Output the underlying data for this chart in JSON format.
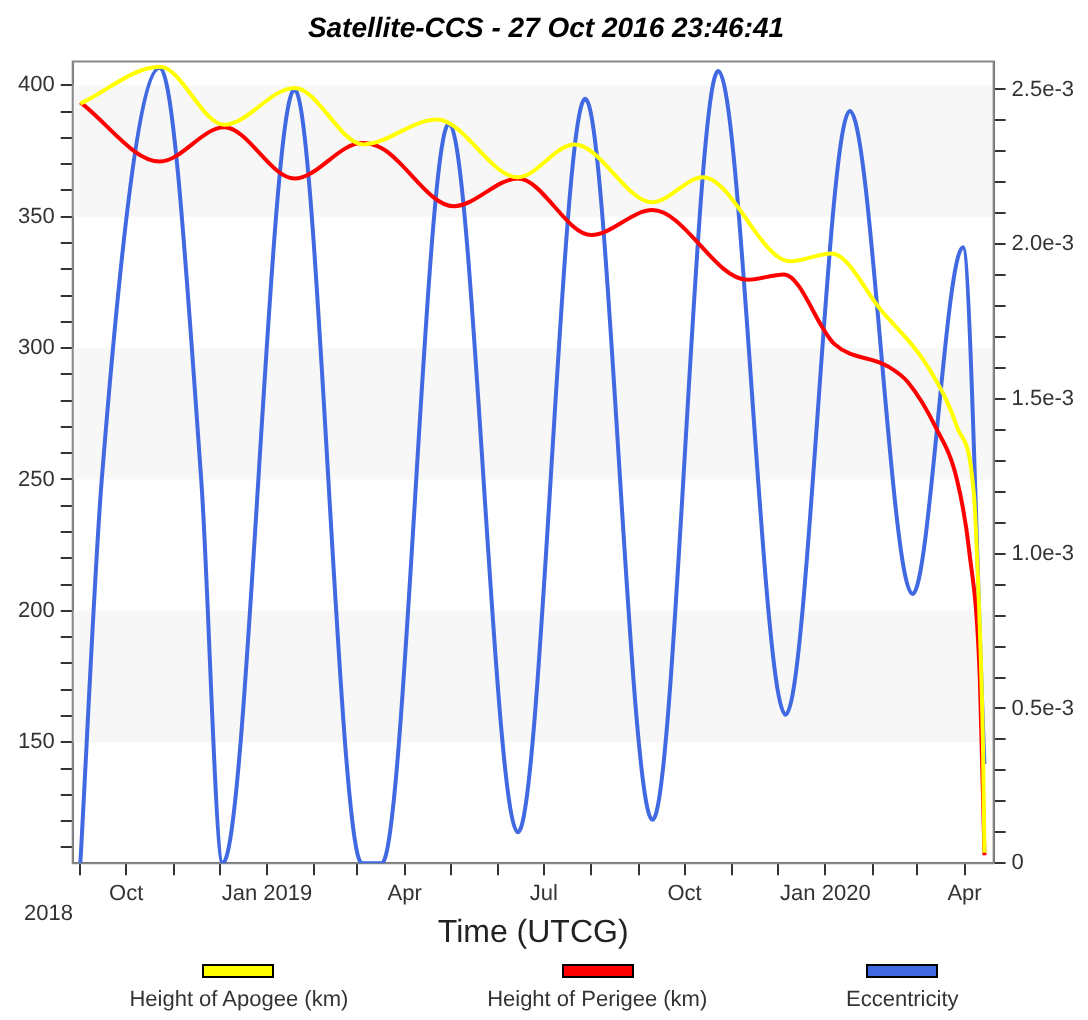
{
  "chart_data": {
    "type": "line",
    "title": "Satellite-CCS - 27 Oct 2016 23:46:41",
    "xlabel": "Time (UTCG)",
    "annotations": [
      "2018"
    ],
    "xlim": [
      "2018-08-27",
      "2020-04-20"
    ],
    "xticks": [
      {
        "value": "2018-09-01",
        "label": null
      },
      {
        "value": "2018-10-01",
        "label": "Oct"
      },
      {
        "value": "2018-11-01",
        "label": null
      },
      {
        "value": "2018-12-01",
        "label": null
      },
      {
        "value": "2019-01-01",
        "label": "Jan 2019"
      },
      {
        "value": "2019-02-01",
        "label": null
      },
      {
        "value": "2019-03-01",
        "label": null
      },
      {
        "value": "2019-04-01",
        "label": "Apr"
      },
      {
        "value": "2019-05-01",
        "label": null
      },
      {
        "value": "2019-06-01",
        "label": null
      },
      {
        "value": "2019-07-01",
        "label": "Jul"
      },
      {
        "value": "2019-08-01",
        "label": null
      },
      {
        "value": "2019-09-01",
        "label": null
      },
      {
        "value": "2019-10-01",
        "label": "Oct"
      },
      {
        "value": "2019-11-01",
        "label": null
      },
      {
        "value": "2019-12-01",
        "label": null
      },
      {
        "value": "2020-01-01",
        "label": "Jan 2020"
      },
      {
        "value": "2020-02-01",
        "label": null
      },
      {
        "value": "2020-03-01",
        "label": null
      },
      {
        "value": "2020-04-01",
        "label": "Apr"
      }
    ],
    "ylim": [
      104,
      409
    ],
    "yticks": [
      {
        "value": 110,
        "label": null
      },
      {
        "value": 120,
        "label": null
      },
      {
        "value": 130,
        "label": null
      },
      {
        "value": 140,
        "label": null
      },
      150,
      {
        "value": 160,
        "label": null
      },
      {
        "value": 170,
        "label": null
      },
      {
        "value": 180,
        "label": null
      },
      {
        "value": 190,
        "label": null
      },
      200,
      {
        "value": 210,
        "label": null
      },
      {
        "value": 220,
        "label": null
      },
      {
        "value": 230,
        "label": null
      },
      {
        "value": 240,
        "label": null
      },
      250,
      {
        "value": 260,
        "label": null
      },
      {
        "value": 270,
        "label": null
      },
      {
        "value": 280,
        "label": null
      },
      {
        "value": 290,
        "label": null
      },
      300,
      {
        "value": 310,
        "label": null
      },
      {
        "value": 320,
        "label": null
      },
      {
        "value": 330,
        "label": null
      },
      {
        "value": 340,
        "label": null
      },
      350,
      {
        "value": 360,
        "label": null
      },
      {
        "value": 370,
        "label": null
      },
      {
        "value": 380,
        "label": null
      },
      {
        "value": 390,
        "label": null
      },
      400
    ],
    "y2lim": [
      0,
      0.00259
    ],
    "y2ticks": [
      0,
      {
        "value": 0.0001,
        "label": null
      },
      {
        "value": 0.0002,
        "label": null
      },
      {
        "value": 0.0003,
        "label": null
      },
      {
        "value": 0.0004,
        "label": null
      },
      {
        "value": 0.0005,
        "label": "0.5e-3"
      },
      {
        "value": 0.0006,
        "label": null
      },
      {
        "value": 0.0007,
        "label": null
      },
      {
        "value": 0.0008,
        "label": null
      },
      {
        "value": 0.0009,
        "label": null
      },
      {
        "value": 0.001,
        "label": "1.0e-3"
      },
      {
        "value": 0.0011,
        "label": null
      },
      {
        "value": 0.0012,
        "label": null
      },
      {
        "value": 0.0013,
        "label": null
      },
      {
        "value": 0.0014,
        "label": null
      },
      {
        "value": 0.0015,
        "label": "1.5e-3"
      },
      {
        "value": 0.0016,
        "label": null
      },
      {
        "value": 0.0017,
        "label": null
      },
      {
        "value": 0.0018,
        "label": null
      },
      {
        "value": 0.0019,
        "label": null
      },
      {
        "value": 0.002,
        "label": "2.0e-3"
      },
      {
        "value": 0.0021,
        "label": null
      },
      {
        "value": 0.0022,
        "label": null
      },
      {
        "value": 0.0023,
        "label": null
      },
      {
        "value": 0.0024,
        "label": null
      },
      {
        "value": 0.0025,
        "label": "2.5e-3"
      }
    ],
    "bands": [
      {
        "axis": "y",
        "from": 150,
        "to": 200,
        "color": "#f7f7f7"
      },
      {
        "axis": "y",
        "from": 250,
        "to": 300,
        "color": "#f7f7f7"
      },
      {
        "axis": "y",
        "from": 350,
        "to": 400,
        "color": "#f7f7f7"
      }
    ],
    "series": [
      {
        "name": "Height of Apogee (km)",
        "color": "#ffff00",
        "x": [
          "2018-09-01",
          "2018-10-23",
          "2018-12-04",
          "2019-01-19",
          "2019-03-05",
          "2019-04-22",
          "2019-06-14",
          "2019-07-21",
          "2019-09-10",
          "2019-10-13",
          "2019-12-09",
          "2020-01-05",
          "2020-02-07",
          "2020-03-09",
          "2020-03-27",
          "2020-04-07",
          "2020-04-09",
          "2020-04-13",
          "2020-04-14"
        ],
        "values": [
          393,
          407,
          385,
          399,
          377.5,
          387,
          365,
          377.5,
          355.5,
          365,
          333,
          336,
          314,
          292,
          270,
          245,
          223,
          150,
          108
        ]
      },
      {
        "name": "Height of Perigee (km)",
        "color": "#ff0000",
        "x": [
          "2018-09-01",
          "2018-10-23",
          "2018-12-04",
          "2019-01-19",
          "2019-03-04",
          "2019-03-17",
          "2019-05-03",
          "2019-06-14",
          "2019-08-01",
          "2019-09-10",
          "2019-11-11",
          "2019-12-05",
          "2020-01-07",
          "2020-02-11",
          "2020-02-24",
          "2020-03-13",
          "2020-03-27",
          "2020-04-04",
          "2020-04-11",
          "2020-04-14"
        ],
        "values": [
          393.5,
          371,
          384,
          364.5,
          378,
          376,
          354,
          364.5,
          343,
          352.5,
          326,
          328,
          301.5,
          293,
          287,
          270,
          250,
          223,
          174,
          107
        ]
      },
      {
        "name": "Eccentricity",
        "color": "#4169e1",
        "axis": "y2",
        "x": [
          "2018-09-01",
          "2018-09-15",
          "2018-10-23",
          "2018-11-19",
          "2018-12-03",
          "2019-01-19",
          "2019-03-04",
          "2019-03-17",
          "2019-04-30",
          "2019-06-14",
          "2019-07-28",
          "2019-09-10",
          "2019-10-23",
          "2019-12-06",
          "2020-01-17",
          "2020-02-27",
          "2020-03-31",
          "2020-04-14"
        ],
        "values": [
          0,
          0.00124,
          0.00257,
          0.00124,
          0,
          0.0025,
          0,
          0,
          0.00239,
          0.0001,
          0.00247,
          0.00014,
          0.00256,
          0.00048,
          0.00243,
          0.00087,
          0.00199,
          0.00032
        ]
      }
    ],
    "grid": false,
    "legend": "bottom",
    "marker": "none",
    "line_style": "solid"
  }
}
